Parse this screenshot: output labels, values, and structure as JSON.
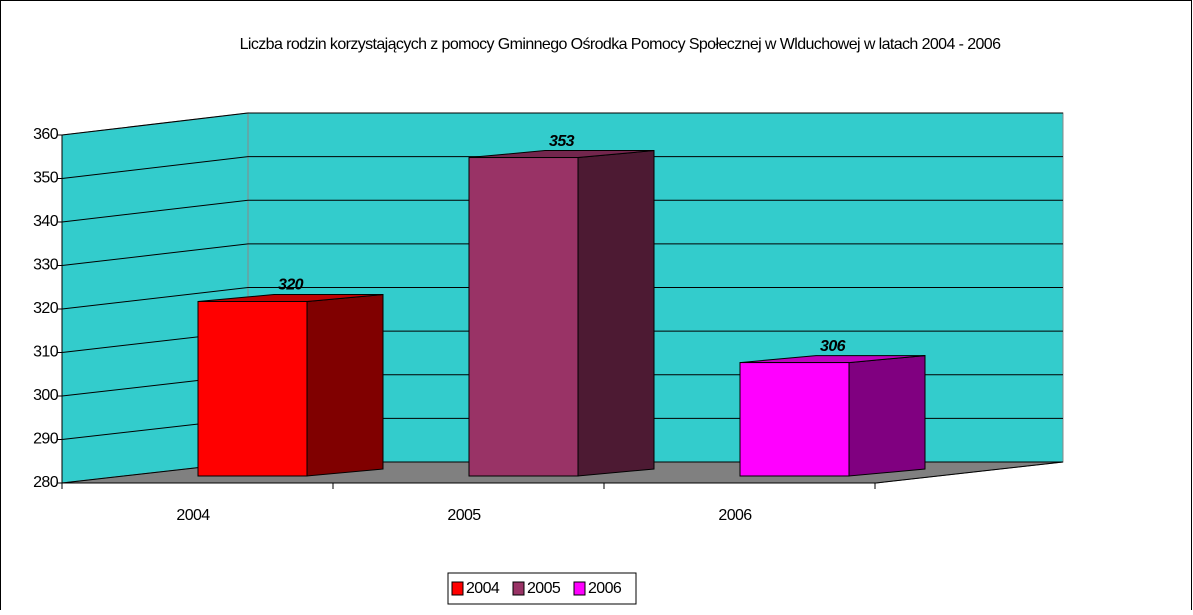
{
  "chart_data": {
    "type": "bar",
    "title": "Liczba rodzin korzystających z pomocy Gminnego Ośrodka Pomocy Społecznej w Wlduchowej w latach 2004 - 2006",
    "categories": [
      "2004",
      "2005",
      "2006"
    ],
    "values": [
      320,
      353,
      306
    ],
    "colors": [
      "#ff0000",
      "#993366",
      "#ff00ff"
    ],
    "ylim": [
      280,
      360
    ],
    "yticks": [
      280,
      290,
      300,
      310,
      320,
      330,
      340,
      350,
      360
    ],
    "grid": true,
    "legend": "bottom"
  }
}
